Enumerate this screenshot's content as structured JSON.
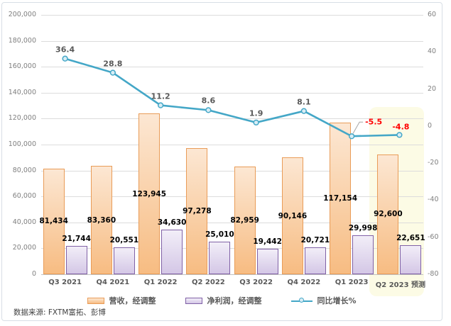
{
  "source_note": "数据来源: FXTM富拓、彭博",
  "legend": {
    "items": [
      {
        "label": "营收，经调整",
        "marker": "bar-orange"
      },
      {
        "label": "净利润，经调整",
        "marker": "bar-purple"
      },
      {
        "label": "同比增长%",
        "marker": "line-teal"
      }
    ]
  },
  "colors": {
    "revenue_fill_top": "#FCE7D3",
    "revenue_fill_bottom": "#F7BC82",
    "revenue_border": "#E99C58",
    "profit_fill_top": "#F2EEF8",
    "profit_fill_bottom": "#D4C7E6",
    "profit_border": "#8061A6",
    "line": "#44A7C7",
    "marker_fill": "#D8EDF5",
    "bar_label": "#000000",
    "line_label": "#595959",
    "negative_label": "#FF0000",
    "leader_line": "#A6A6A6",
    "highlight_bg": "#FCFBE5"
  },
  "chart_data": {
    "type": "combo-bar-line",
    "categories": [
      "Q3 2021",
      "Q4 2021",
      "Q1 2022",
      "Q2 2022",
      "Q3 2022",
      "Q4 2022",
      "Q1 2023",
      "Q2 2023 预测"
    ],
    "series": [
      {
        "name": "营收，经调整",
        "type": "bar",
        "axis": "left",
        "values": [
          81434,
          83360,
          123945,
          97278,
          82959,
          90146,
          117154,
          92600
        ],
        "labels": [
          "81,434",
          "83,360",
          "123,945",
          "97,278",
          "82,959",
          "90,146",
          "117,154",
          "92,600"
        ]
      },
      {
        "name": "净利润，经调整",
        "type": "bar",
        "axis": "left",
        "values": [
          21744,
          20551,
          34630,
          25010,
          19442,
          20721,
          29998,
          22651
        ],
        "labels": [
          "21,744",
          "20,551",
          "34,630",
          "25,010",
          "19,442",
          "20,721",
          "29,998",
          "22,651"
        ]
      },
      {
        "name": "同比增长%",
        "type": "line",
        "axis": "right",
        "values": [
          36.4,
          28.8,
          11.2,
          8.6,
          1.9,
          8.1,
          -5.5,
          -4.8
        ],
        "labels": [
          "36.4",
          "28.8",
          "11.2",
          "8.6",
          "1.9",
          "8.1",
          "-5.5",
          "-4.8"
        ]
      }
    ],
    "left_axis": {
      "min": 0,
      "max": 200000,
      "step": 20000,
      "tick_labels": [
        "0",
        "20,000",
        "40,000",
        "60,000",
        "80,000",
        "100,000",
        "120,000",
        "140,000",
        "160,000",
        "180,000",
        "200,000"
      ]
    },
    "right_axis": {
      "min": -80,
      "max": 60,
      "step": 20,
      "tick_labels": [
        "60",
        "40",
        "20",
        "0",
        "-20",
        "-40",
        "-60",
        "-80"
      ]
    },
    "highlight_category": "Q2 2023 预测",
    "grid": true,
    "legend_position": "bottom"
  }
}
